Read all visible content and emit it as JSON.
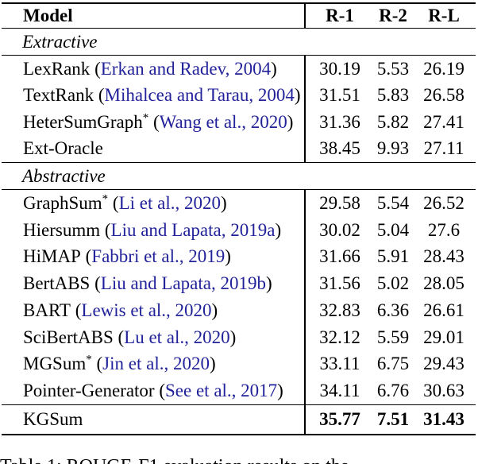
{
  "table": {
    "header": {
      "model": "Model",
      "r1": "R-1",
      "r2": "R-2",
      "rl": "R-L"
    },
    "sections": [
      {
        "label": "Extractive",
        "rows": [
          {
            "name": "LexRank",
            "pre": " (",
            "cite": "Erkan and Radev, 2004",
            "post": ")",
            "r1": "30.19",
            "r2": "5.53",
            "rl": "26.19"
          },
          {
            "name": "TextRank",
            "pre": " (",
            "cite": "Mihalcea and Tarau, 2004",
            "post": ")",
            "r1": "31.51",
            "r2": "5.83",
            "rl": "26.58"
          },
          {
            "name": "HeterSumGraph",
            "star": "*",
            "pre": " (",
            "cite": "Wang et al., 2020",
            "post": ")",
            "r1": "31.36",
            "r2": "5.82",
            "rl": "27.41"
          },
          {
            "name": "Ext-Oracle",
            "r1": "38.45",
            "r2": "9.93",
            "rl": "27.11"
          }
        ]
      },
      {
        "label": "Abstractive",
        "rows": [
          {
            "name": "GraphSum",
            "star": "*",
            "pre": " (",
            "cite": "Li et al., 2020",
            "post": ")",
            "r1": "29.58",
            "r2": "5.54",
            "rl": "26.52"
          },
          {
            "name": "Hiersumm",
            "pre": " (",
            "cite": "Liu and Lapata, 2019a",
            "post": ")",
            "r1": "30.02",
            "r2": "5.04",
            "rl": "27.6"
          },
          {
            "name": "HiMAP",
            "pre": " (",
            "cite": "Fabbri et al., 2019",
            "post": ")",
            "r1": "31.66",
            "r2": "5.91",
            "rl": "28.43"
          },
          {
            "name": "BertABS",
            "pre": " (",
            "cite": "Liu and Lapata, 2019b",
            "post": ")",
            "r1": "31.56",
            "r2": "5.02",
            "rl": "28.05"
          },
          {
            "name": "BART",
            "pre": " (",
            "cite": "Lewis et al., 2020",
            "post": ")",
            "r1": "32.83",
            "r2": "6.36",
            "rl": "26.61"
          },
          {
            "name": "SciBertABS",
            "pre": " (",
            "cite": "Lu et al., 2020",
            "post": ")",
            "r1": "32.12",
            "r2": "5.59",
            "rl": "29.01"
          },
          {
            "name": "MGSum",
            "star": "*",
            "pre": " (",
            "cite": "Jin et al., 2020",
            "post": ")",
            "r1": "33.11",
            "r2": "6.75",
            "rl": "29.43"
          },
          {
            "name": "Pointer-Generator",
            "pre": " (",
            "cite": "See et al., 2017",
            "post": ")",
            "r1": "34.11",
            "r2": "6.76",
            "rl": "30.63"
          }
        ]
      }
    ],
    "final_row": {
      "name": "KGSum",
      "r1": "35.77",
      "r2": "7.51",
      "rl": "31.43"
    },
    "caption": "Table 1: ROUGE-F1 evaluation results on the"
  },
  "colors": {
    "citation_link": "#22229a",
    "text": "#000000",
    "background": "#ffffff"
  }
}
